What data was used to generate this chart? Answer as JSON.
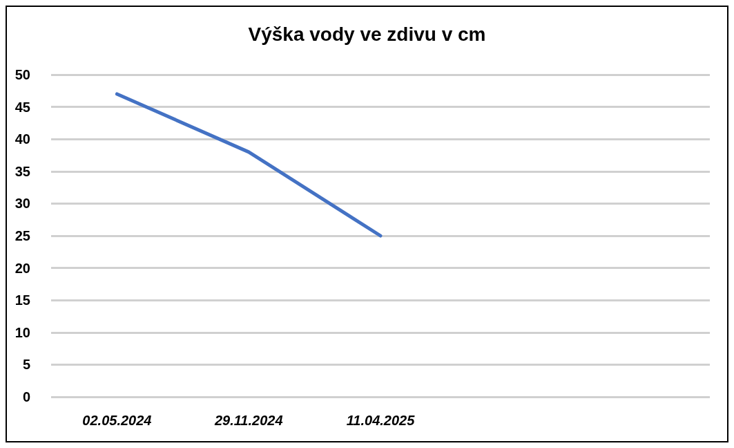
{
  "chart_data": {
    "type": "line",
    "title": "Výška vody ve zdivu v cm",
    "categories": [
      "02.05.2024",
      "29.11.2024",
      "11.04.2025",
      null,
      null
    ],
    "series": [
      {
        "color": "#4472c4",
        "values": [
          47,
          38,
          25,
          null,
          null
        ]
      }
    ],
    "ylim": [
      0,
      50
    ],
    "yticks": [
      0,
      5,
      10,
      15,
      20,
      25,
      30,
      35,
      40,
      45,
      50
    ],
    "grid": "y",
    "marker": "none",
    "line_style": "solid"
  }
}
